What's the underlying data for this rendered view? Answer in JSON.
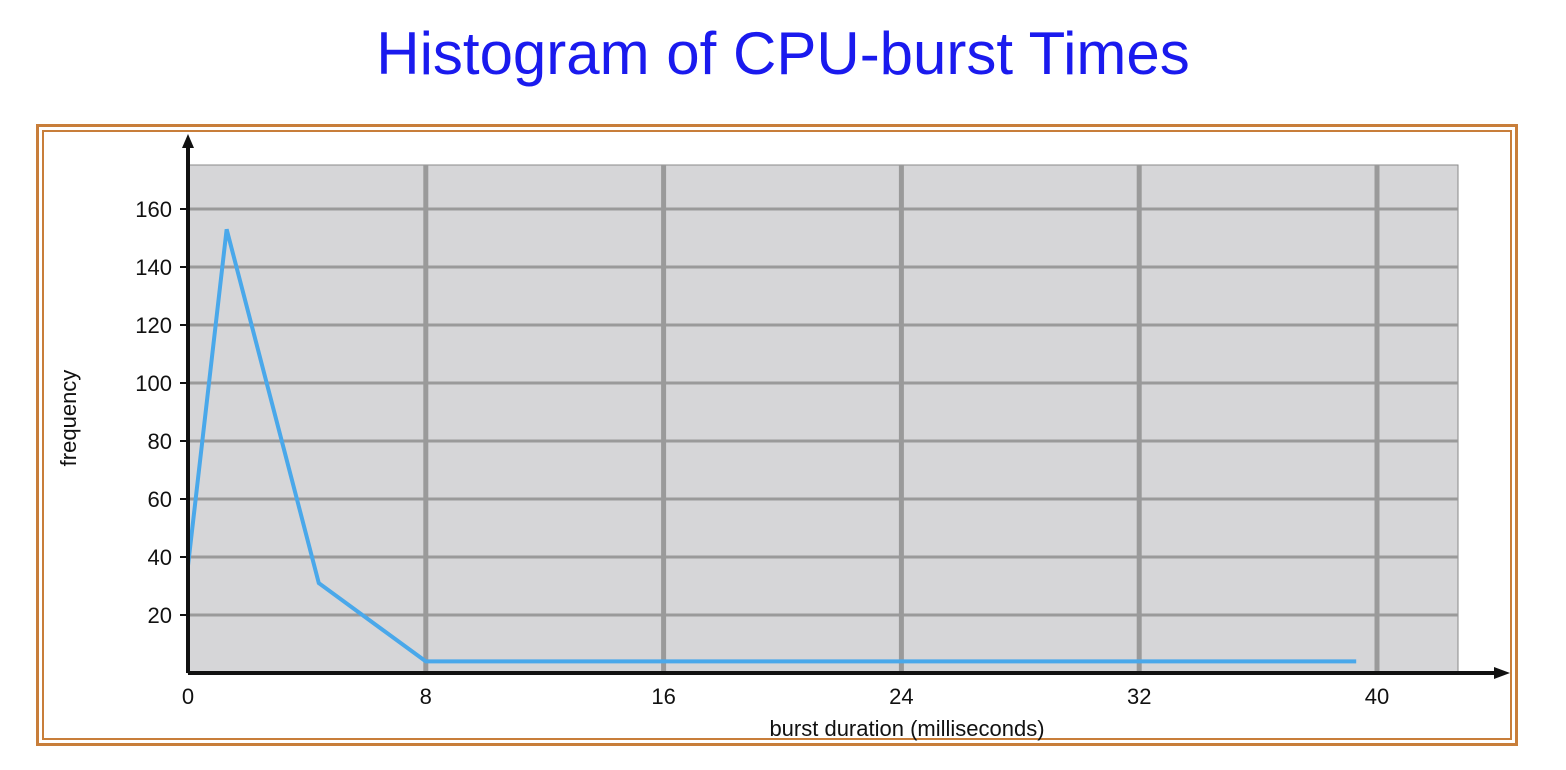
{
  "chart_data": {
    "type": "line",
    "title": "Histogram of CPU-burst Times",
    "xlabel": "burst duration (milliseconds)",
    "ylabel": "frequency",
    "xlim": [
      0,
      43
    ],
    "ylim": [
      0,
      175
    ],
    "x_ticks": [
      0,
      8,
      16,
      24,
      32,
      40
    ],
    "y_ticks": [
      20,
      40,
      60,
      80,
      100,
      120,
      140,
      160
    ],
    "x_tick_labels": [
      "0",
      "8",
      "16",
      "24",
      "32",
      "40"
    ],
    "y_tick_labels": [
      "20",
      "40",
      "60",
      "80",
      "100",
      "120",
      "140",
      "160"
    ],
    "grid": true,
    "series": [
      {
        "x": [
          0,
          1.3,
          4.4,
          8,
          39.3
        ],
        "y": [
          37,
          153,
          31,
          4,
          4
        ],
        "color": "#4aa8ea"
      }
    ],
    "colors": {
      "title": "#1a1aee",
      "plot_background": "#d6d6d8",
      "grid": "#9a9a9a",
      "frame": "#c87e3a",
      "axis": "#111111"
    }
  }
}
